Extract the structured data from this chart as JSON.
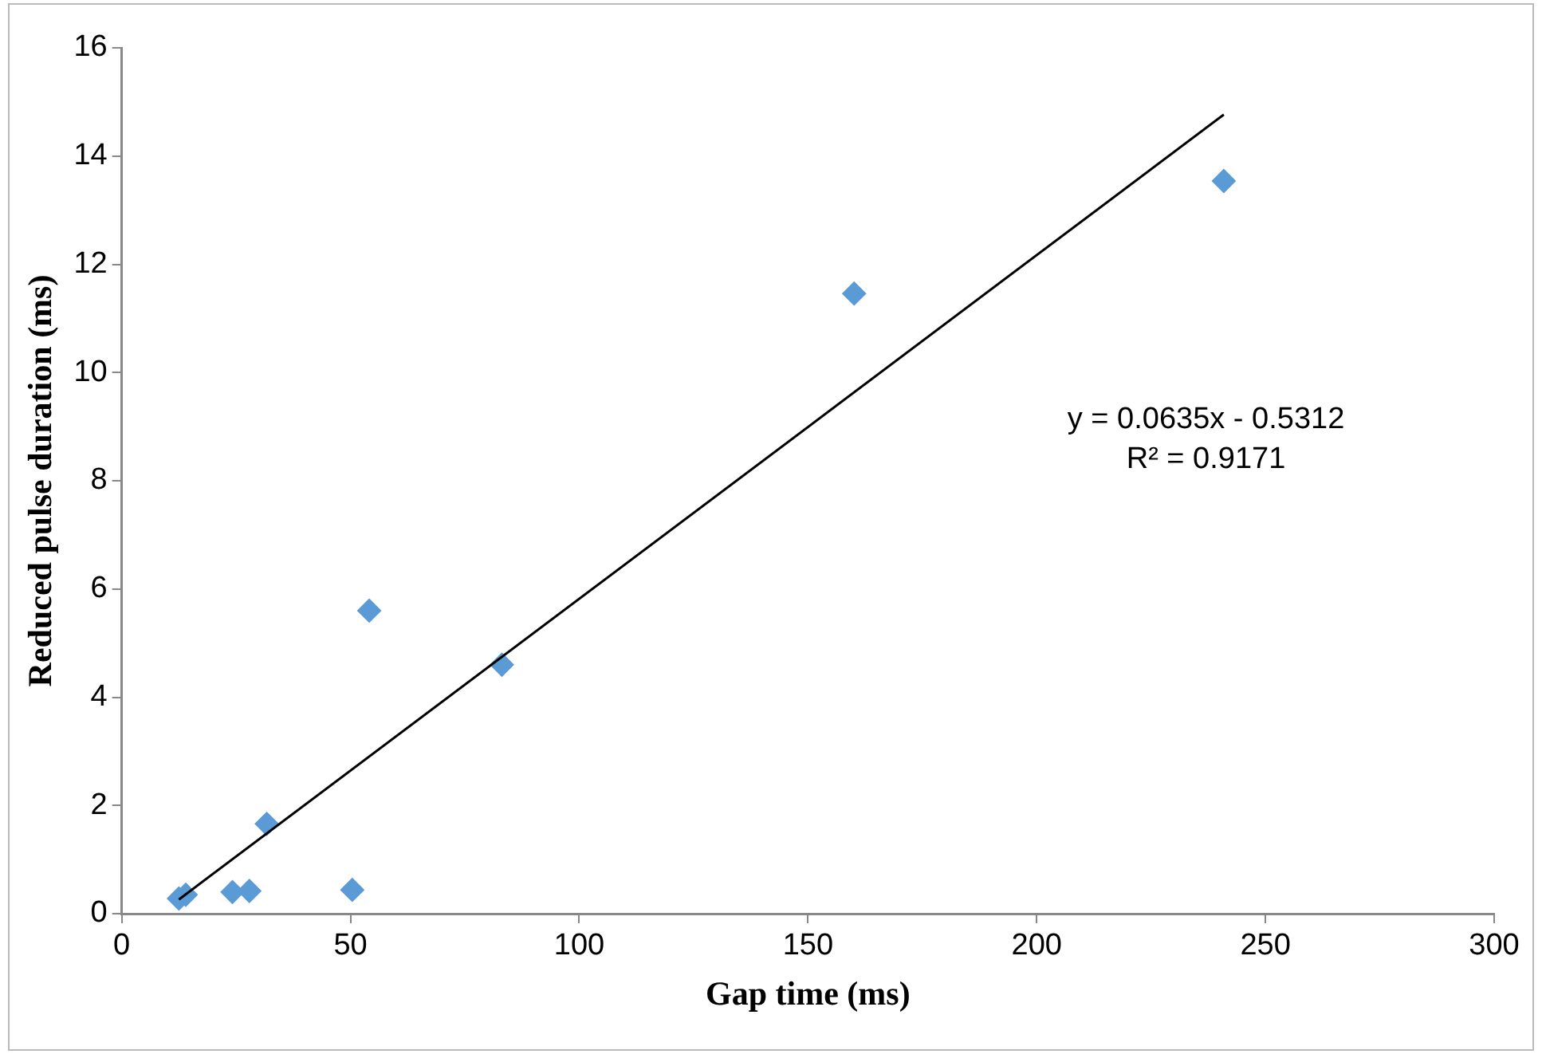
{
  "chart_data": {
    "type": "scatter",
    "xlabel": "Gap time (ms)",
    "ylabel": "Reduced pulse duration (ms)",
    "xlim": [
      0,
      300
    ],
    "xticks": [
      0,
      50,
      100,
      150,
      200,
      250,
      300
    ],
    "ylim": [
      0,
      16
    ],
    "yticks": [
      0,
      2,
      4,
      6,
      8,
      10,
      12,
      14,
      16
    ],
    "grid": false,
    "legend": false,
    "marker": "diamond",
    "series": [
      {
        "color": "#5b9bd5",
        "x": [
          12.5,
          14,
          24.2,
          27.9,
          50.4,
          31.7,
          54.1,
          83.1,
          160.1,
          240.9
        ],
        "values": [
          0.28,
          0.35,
          0.4,
          0.42,
          0.44,
          1.66,
          5.6,
          4.6,
          11.46,
          13.54
        ]
      },
      {
        "type": "line",
        "color": "#000000",
        "marker": "none",
        "x": [
          12.5,
          240.9
        ],
        "values": [
          0.2626,
          14.766
        ]
      }
    ],
    "annotations": [
      "y = 0.0635x - 0.5312\nR² = 0.9171"
    ]
  }
}
